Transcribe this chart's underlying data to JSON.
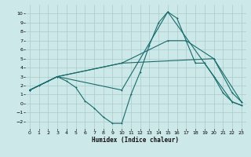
{
  "xlabel": "Humidex (Indice chaleur)",
  "bg_color": "#cce8e8",
  "grid_color": "#aacccc",
  "line_color": "#1a6b6b",
  "line1_x": [
    0,
    1,
    2,
    3,
    4,
    5,
    6,
    7,
    8,
    9,
    10,
    11,
    12,
    13,
    14,
    15,
    16,
    17,
    18,
    19,
    20,
    21,
    22,
    23
  ],
  "line1_y": [
    1.5,
    2.0,
    2.5,
    3.0,
    2.5,
    1.8,
    0.3,
    -0.5,
    -1.5,
    -2.2,
    -2.2,
    1.0,
    3.5,
    6.5,
    9.0,
    10.2,
    9.5,
    7.0,
    4.5,
    4.5,
    3.0,
    1.2,
    0.2,
    -0.2
  ],
  "line2_x": [
    0,
    3,
    10,
    15,
    17,
    20,
    22,
    23
  ],
  "line2_y": [
    1.5,
    3.0,
    4.5,
    7.0,
    7.0,
    5.0,
    1.2,
    0.2
  ],
  "line3_x": [
    0,
    3,
    10,
    15,
    22,
    23
  ],
  "line3_y": [
    1.5,
    3.0,
    1.5,
    10.2,
    0.2,
    -0.2
  ],
  "line4_x": [
    0,
    3,
    10,
    20,
    23
  ],
  "line4_y": [
    1.5,
    3.0,
    4.5,
    5.0,
    0.2
  ],
  "xlim": [
    -0.5,
    23.5
  ],
  "ylim": [
    -2.8,
    11.0
  ],
  "yticks": [
    -2,
    -1,
    0,
    1,
    2,
    3,
    4,
    5,
    6,
    7,
    8,
    9,
    10
  ],
  "xticks": [
    0,
    1,
    2,
    3,
    4,
    5,
    6,
    7,
    8,
    9,
    10,
    11,
    12,
    13,
    14,
    15,
    16,
    17,
    18,
    19,
    20,
    21,
    22,
    23
  ]
}
